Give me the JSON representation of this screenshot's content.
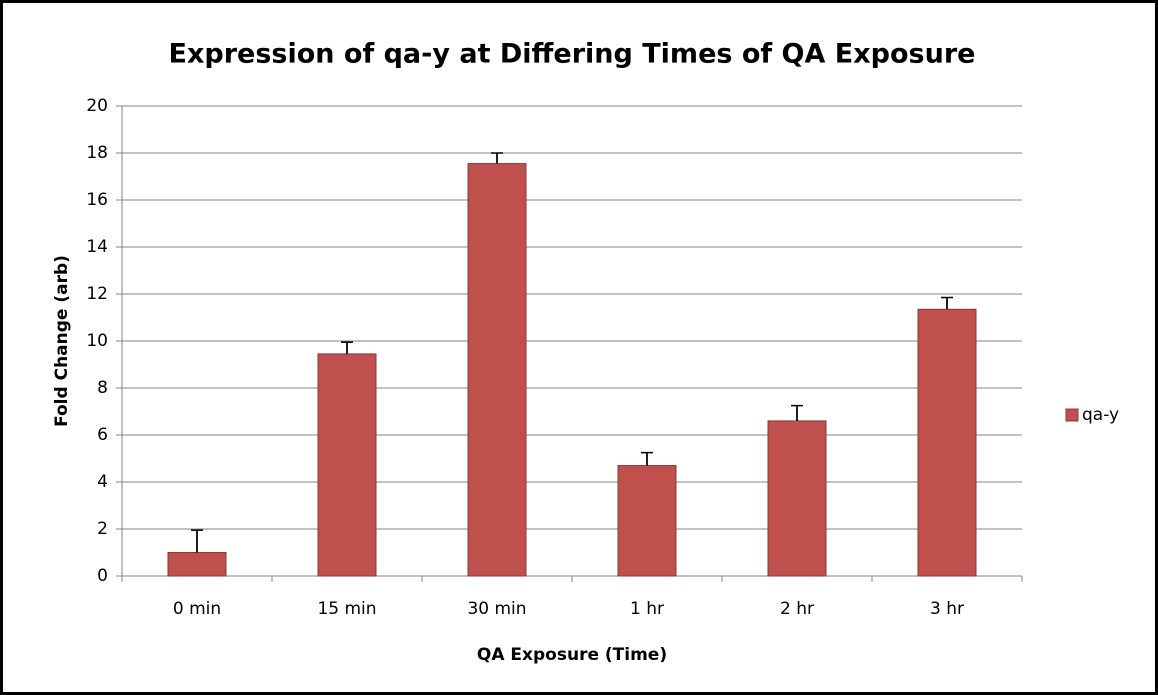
{
  "chart_data": {
    "type": "bar",
    "title": "Expression of qa-y at Differing Times of QA Exposure",
    "x_label": "QA Exposure (Time)",
    "y_label": "Fold Change (arb)",
    "categories": [
      "0 min",
      "15 min",
      "30 min",
      "1 hr",
      "2 hr",
      "3 hr"
    ],
    "series": [
      {
        "name": "qa-y",
        "color": "#c0504d",
        "values": [
          1.0,
          9.45,
          17.55,
          4.7,
          6.6,
          11.35
        ],
        "errors": [
          0.95,
          0.5,
          0.45,
          0.55,
          0.65,
          0.5
        ]
      }
    ],
    "ylim": [
      0,
      20
    ],
    "yticks": [
      0,
      2,
      4,
      6,
      8,
      10,
      12,
      14,
      16,
      18,
      20
    ],
    "grid": true,
    "legend": "right"
  }
}
